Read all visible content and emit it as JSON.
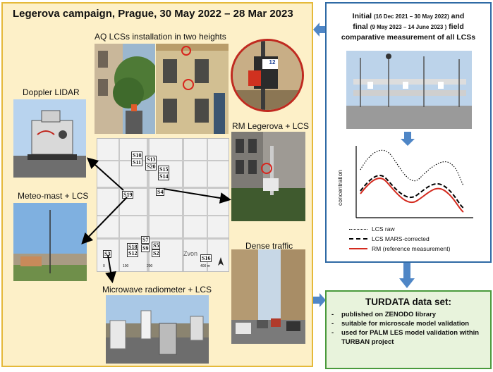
{
  "title": "Legerova campaign, Prague, 30 May 2022 – 28 Mar 2023",
  "captions": {
    "aq_lcs": "AQ LCSs installation in two heights",
    "doppler": "Doppler LIDAR",
    "rm": "RM Legerova + LCS",
    "meteo": "Meteo-mast + LCS",
    "microwave": "Microwave radiometer + LCS",
    "traffic": "Dense traffic"
  },
  "device_label": "12",
  "map": {
    "sites": [
      "S10",
      "S11",
      "S13",
      "S20",
      "S15",
      "S14",
      "S4",
      "S19",
      "S7",
      "S18",
      "S9",
      "S5",
      "S12",
      "S2",
      "S3",
      "S16"
    ],
    "street_label": "Zvon",
    "scale_labels": [
      "0",
      "100",
      "200",
      "400 m"
    ]
  },
  "initial_final": {
    "line1_a": "Initial",
    "line1_b": "(16 Dec 2021 – 30 May 2022)",
    "line1_c": "and",
    "line2_a": "final",
    "line2_b": "(9 May 2023 – 14 June 2023 )",
    "line2_c": "field",
    "line3": "comparative measurement of all LCSs"
  },
  "chart": {
    "ylabel": "concentration",
    "legend": [
      {
        "label": "LCS raw",
        "style": "dotted",
        "color": "#000000"
      },
      {
        "label": "LCS MARS-corrected",
        "style": "dashed",
        "color": "#000000"
      },
      {
        "label": "RM (reference measurement)",
        "style": "solid",
        "color": "#d42a1e"
      }
    ]
  },
  "turdata": {
    "title": "TURDATA data set:",
    "bullets": [
      "published on ZENODO library",
      "suitable for microscale model validation",
      "used for PALM LES model validation within TURBAN project"
    ]
  },
  "colors": {
    "left_bg": "#fdf0c8",
    "left_border": "#e5b93a",
    "blue_border": "#2f6aa5",
    "green_bg": "#e8f3dc",
    "green_border": "#4a9a3c",
    "arrow_blue": "#4f86c6",
    "rm_red": "#d42a1e"
  }
}
